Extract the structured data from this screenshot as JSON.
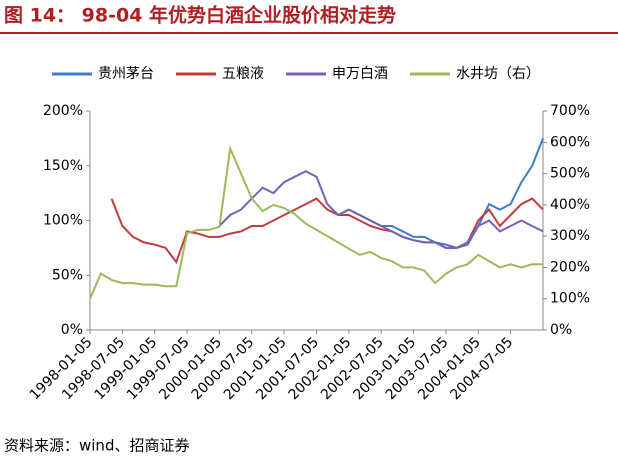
{
  "chart_data": {
    "type": "line",
    "title": "图 14： 98-04 年优势白酒企业股价相对走势",
    "source": "资料来源：wind、招商证券",
    "categories": [
      "1998-01-05",
      null,
      null,
      "1998-07-05",
      null,
      null,
      "1999-01-05",
      null,
      null,
      "1999-07-05",
      null,
      null,
      "2000-01-05",
      null,
      null,
      "2000-07-05",
      null,
      null,
      "2001-01-05",
      null,
      null,
      "2001-07-05",
      null,
      null,
      "2002-01-05",
      null,
      null,
      "2002-07-05",
      null,
      null,
      "2003-01-05",
      null,
      null,
      "2003-07-05",
      null,
      null,
      "2004-01-05",
      null,
      null,
      "2004-07-05",
      null,
      null,
      null
    ],
    "series": [
      {
        "name": "贵州茅台",
        "color": "#3d7cc9",
        "values": [
          null,
          null,
          null,
          null,
          null,
          null,
          null,
          null,
          null,
          null,
          null,
          null,
          null,
          null,
          null,
          null,
          null,
          null,
          null,
          null,
          null,
          null,
          115,
          105,
          110,
          105,
          100,
          95,
          95,
          90,
          85,
          85,
          80,
          78,
          75,
          78,
          95,
          115,
          110,
          115,
          135,
          150,
          175
        ]
      },
      {
        "name": "五粮液",
        "color": "#c33b3b",
        "values": [
          null,
          null,
          120,
          95,
          85,
          80,
          78,
          75,
          62,
          90,
          88,
          85,
          85,
          88,
          90,
          95,
          95,
          100,
          105,
          110,
          115,
          120,
          110,
          105,
          105,
          100,
          95,
          92,
          90,
          85,
          82,
          80,
          80,
          75,
          75,
          80,
          100,
          110,
          95,
          105,
          115,
          120,
          110
        ]
      },
      {
        "name": "申万白酒",
        "color": "#7b5fb5",
        "values": [
          null,
          null,
          null,
          null,
          null,
          null,
          null,
          null,
          null,
          null,
          null,
          null,
          95,
          105,
          110,
          120,
          130,
          125,
          135,
          140,
          145,
          140,
          115,
          105,
          110,
          105,
          100,
          95,
          90,
          85,
          82,
          80,
          80,
          75,
          75,
          80,
          95,
          100,
          90,
          95,
          100,
          95,
          90
        ]
      },
      {
        "name": "水井坊（右）",
        "color": "#9bbb59",
        "axis": "y2",
        "values": [
          100,
          180,
          160,
          150,
          150,
          145,
          145,
          140,
          140,
          310,
          320,
          320,
          330,
          580,
          500,
          420,
          380,
          400,
          390,
          370,
          340,
          320,
          300,
          280,
          260,
          240,
          250,
          230,
          220,
          200,
          200,
          190,
          150,
          180,
          200,
          210,
          240,
          220,
          200,
          210,
          200,
          210,
          210
        ]
      }
    ],
    "ylim": [
      0,
      200
    ],
    "yticks": [
      {
        "value": 0,
        "label": "0%"
      },
      {
        "value": 50,
        "label": "50%"
      },
      {
        "value": 100,
        "label": "100%"
      },
      {
        "value": 150,
        "label": "150%"
      },
      {
        "value": 200,
        "label": "200%"
      }
    ],
    "y2lim": [
      0,
      700
    ],
    "y2ticks": [
      {
        "value": 0,
        "label": "0%"
      },
      {
        "value": 100,
        "label": "100%"
      },
      {
        "value": 200,
        "label": "200%"
      },
      {
        "value": 300,
        "label": "300%"
      },
      {
        "value": 400,
        "label": "400%"
      },
      {
        "value": 500,
        "label": "500%"
      },
      {
        "value": 600,
        "label": "600%"
      },
      {
        "value": 700,
        "label": "700%"
      }
    ],
    "legend": "top"
  }
}
